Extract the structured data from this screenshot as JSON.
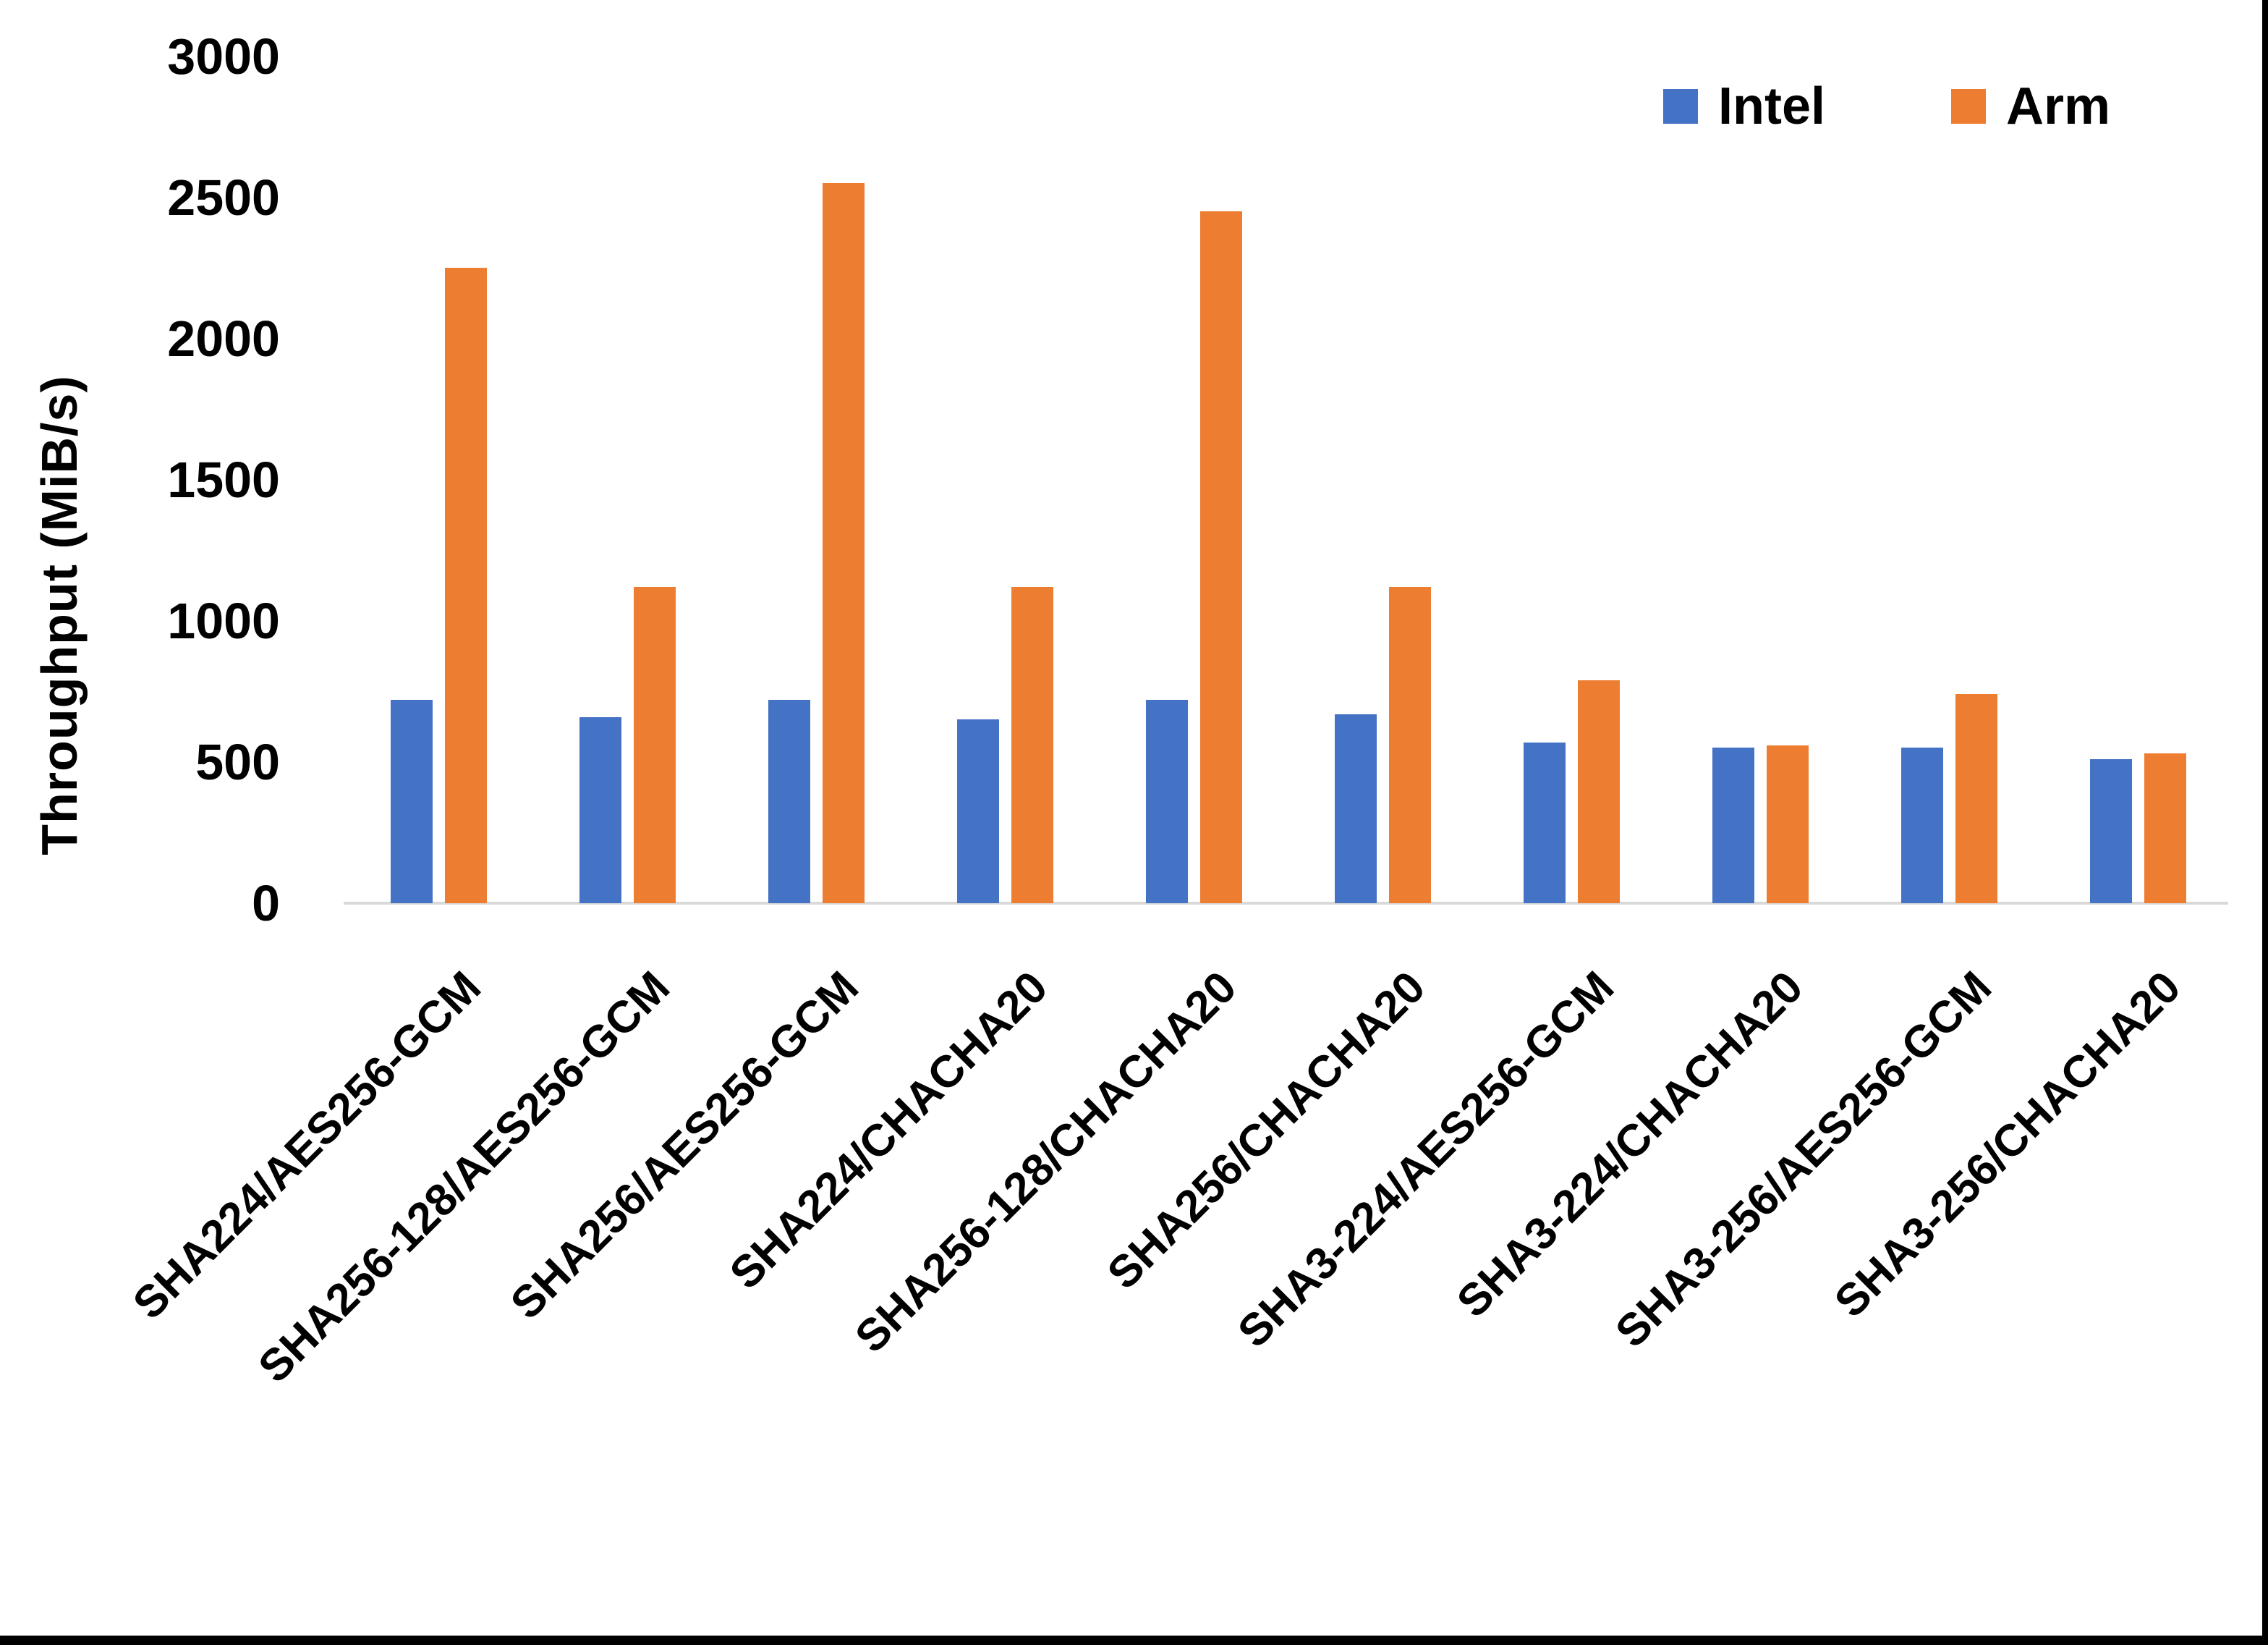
{
  "window": {
    "background": "#ffffff",
    "right_border_color": "#000000",
    "bottom_border_color": "#000000"
  },
  "chart_data": {
    "type": "bar",
    "title": "",
    "ylabel": "Throughput (MiB/s)",
    "xlabel": "",
    "ylim": [
      0,
      3000
    ],
    "yticks": [
      0,
      500,
      1000,
      1500,
      2000,
      2500,
      3000
    ],
    "grid": false,
    "legend_position": "top-right",
    "axis_line_color": "#D9D9D9",
    "text_color": "#000000",
    "categories": [
      "SHA224/AES256-GCM",
      "SHA256-128/AES256-GCM",
      "SHA256/AES256-GCM",
      "SHA224/CHACHA20",
      "SHA256-128/CHACHA20",
      "SHA256/CHACHA20",
      "SHA3-224/AES256-GCM",
      "SHA3-224/CHACHA20",
      "SHA3-256/AES256-GCM",
      "SHA3-256/CHACHA20"
    ],
    "series": [
      {
        "name": "Intel",
        "color": "#4472C4",
        "values": [
          720,
          660,
          720,
          650,
          720,
          670,
          570,
          550,
          550,
          510
        ]
      },
      {
        "name": "Arm",
        "color": "#ED7D31",
        "values": [
          2250,
          1120,
          2550,
          1120,
          2450,
          1120,
          790,
          560,
          740,
          530
        ]
      }
    ]
  }
}
